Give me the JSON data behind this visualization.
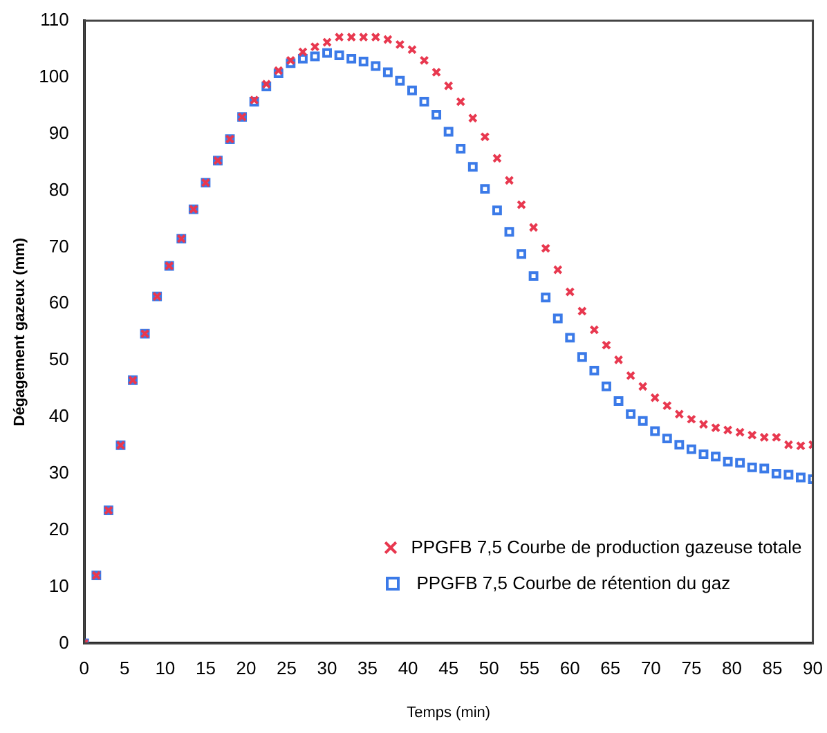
{
  "chart_data": {
    "type": "scatter",
    "xlabel": "Temps (min)",
    "ylabel": "Dégagement gazeux (mm)",
    "xlim": [
      0,
      90
    ],
    "xticks": [
      0,
      5,
      10,
      15,
      20,
      25,
      30,
      35,
      40,
      45,
      50,
      55,
      60,
      65,
      70,
      75,
      80,
      85,
      90
    ],
    "ylim": [
      0,
      110
    ],
    "yticks": [
      0,
      10,
      20,
      30,
      40,
      50,
      60,
      70,
      80,
      90,
      100,
      110
    ],
    "grid": false,
    "legend": "bottom right",
    "x": [
      0,
      1.5,
      3,
      4.5,
      6,
      7.5,
      9,
      10.5,
      12,
      13.5,
      15,
      16.5,
      18,
      19.5,
      21,
      22.5,
      24,
      25.5,
      27,
      28.5,
      30,
      31.5,
      33,
      34.5,
      36,
      37.5,
      39,
      40.5,
      42,
      43.5,
      45,
      46.5,
      48,
      49.5,
      51,
      52.5,
      54,
      55.5,
      57,
      58.5,
      60,
      61.5,
      63,
      64.5,
      66,
      67.5,
      69,
      70.5,
      72,
      73.5,
      75,
      76.5,
      78,
      79.5,
      81,
      82.5,
      84,
      85.5,
      87,
      88.5,
      90
    ],
    "series": [
      {
        "name": "PPGFB 7,5 Courbe de production gazeuse totale",
        "color": "#e8384f",
        "marker": "cross",
        "values": [
          0,
          12,
          23.5,
          35,
          46.5,
          54.7,
          61.3,
          66.7,
          71.5,
          76.7,
          81.4,
          85.3,
          89.1,
          93,
          96,
          98.8,
          101.2,
          103,
          104.5,
          105.4,
          106.2,
          107.1,
          107.1,
          107.1,
          107.1,
          106.7,
          105.8,
          104.9,
          103,
          100.9,
          98.5,
          95.7,
          92.8,
          89.5,
          85.7,
          81.8,
          77.5,
          73.5,
          69.8,
          66,
          62.1,
          58.7,
          55.4,
          52.7,
          50.1,
          47.3,
          45.4,
          43.4,
          42,
          40.5,
          39.6,
          38.7,
          38.1,
          37.7,
          37.3,
          36.8,
          36.4,
          36.4,
          35.1,
          34.9,
          35.1
        ]
      },
      {
        "name": "PPGFB 7,5 Courbe de rétention du gaz",
        "color": "#3b7ae8",
        "marker": "square",
        "values": [
          0,
          12,
          23.5,
          35,
          46.5,
          54.7,
          61.3,
          66.7,
          71.5,
          76.7,
          81.4,
          85.3,
          89.1,
          93,
          95.7,
          98.4,
          100.7,
          102.5,
          103.3,
          103.7,
          104.3,
          103.9,
          103.3,
          102.8,
          102,
          100.9,
          99.4,
          97.7,
          95.7,
          93.4,
          90.4,
          87.4,
          84.2,
          80.3,
          76.5,
          72.7,
          68.8,
          64.9,
          61.1,
          57.4,
          54,
          50.6,
          48.2,
          45.4,
          42.8,
          40.5,
          39.3,
          37.5,
          36.2,
          35.1,
          34.3,
          33.4,
          33,
          32.1,
          31.9,
          31.1,
          30.9,
          30,
          29.8,
          29.3,
          29
        ]
      }
    ]
  }
}
